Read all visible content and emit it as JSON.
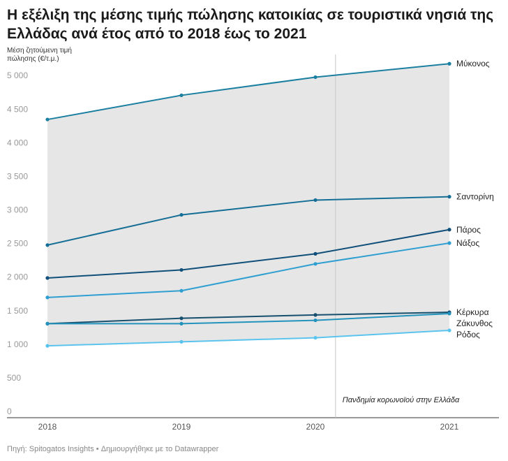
{
  "chart_data": {
    "type": "line",
    "title": "Η εξέλιξη της μέσης τιμής πώλησης κατοικίας σε τουριστικά νησιά της Ελλάδας ανά έτος από το 2018 έως το 2021",
    "ylabel": "Μέση ζητούμενη τιμή πώλησης (€/τ.μ.)",
    "x": [
      "2018",
      "2019",
      "2020",
      "2021"
    ],
    "ylim": [
      0,
      5200
    ],
    "yticks": [
      0,
      500,
      1000,
      1500,
      2000,
      2500,
      3000,
      3500,
      4000,
      4500,
      5000
    ],
    "ytick_labels": [
      "0",
      "500",
      "1 000",
      "1 500",
      "2 000",
      "2 500",
      "3 000",
      "3 500",
      "4 000",
      "4 500",
      "5 000"
    ],
    "grid": false,
    "shaded_band": "between min and max series",
    "annotation": {
      "text": "Πανδημία κορωνοϊού στην Ελλάδα",
      "x": 2020.15
    },
    "series": [
      {
        "name": "Μύκονος",
        "values": [
          4440,
          4800,
          5070,
          5270
        ],
        "color": "#1a7fa0"
      },
      {
        "name": "Σαντορίνη",
        "values": [
          2570,
          3020,
          3240,
          3290
        ],
        "color": "#146e96"
      },
      {
        "name": "Πάρος",
        "values": [
          2080,
          2200,
          2440,
          2800
        ],
        "color": "#0f4f7a"
      },
      {
        "name": "Νάξος",
        "values": [
          1790,
          1890,
          2290,
          2600
        ],
        "color": "#2e9fd0"
      },
      {
        "name": "Κέρκυρα",
        "values": [
          1400,
          1480,
          1530,
          1570
        ],
        "color": "#174f6e"
      },
      {
        "name": "Ζάκυνθος",
        "values": [
          1400,
          1400,
          1450,
          1550
        ],
        "color": "#2393bd"
      },
      {
        "name": "Ρόδος",
        "values": [
          1070,
          1130,
          1190,
          1300
        ],
        "color": "#5bc4ee"
      }
    ]
  },
  "source": "Πηγή: Spitogatos Insights • Δημιουργήθηκε με το Datawrapper"
}
